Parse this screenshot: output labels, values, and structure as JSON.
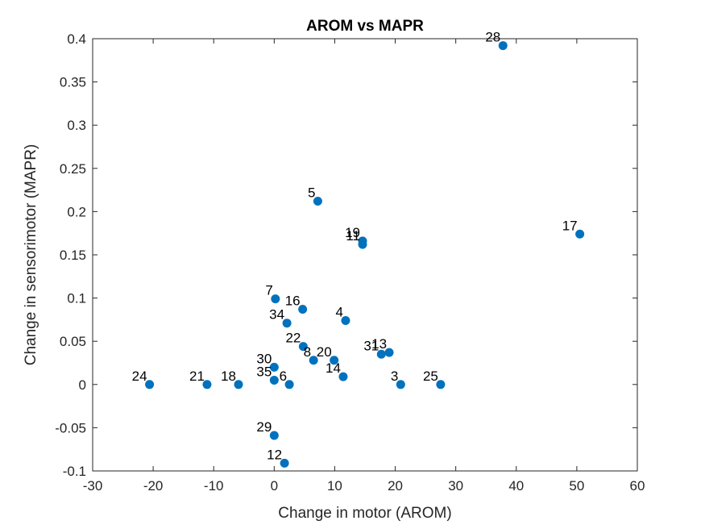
{
  "chart_data": {
    "type": "scatter",
    "title": "AROM vs MAPR",
    "xlabel": "Change in motor (AROM)",
    "ylabel": "Change in sensorimotor (MAPR)",
    "xlim": [
      -30,
      60
    ],
    "ylim": [
      -0.1,
      0.4
    ],
    "xticks": [
      -30,
      -20,
      -10,
      0,
      10,
      20,
      30,
      40,
      50,
      60
    ],
    "xtick_labels": [
      "-30",
      "-20",
      "-10",
      "0",
      "10",
      "20",
      "30",
      "40",
      "50",
      "60"
    ],
    "yticks": [
      -0.1,
      -0.05,
      0,
      0.05,
      0.1,
      0.15,
      0.2,
      0.25,
      0.3,
      0.35,
      0.4
    ],
    "ytick_labels": [
      "-0.1",
      "-0.05",
      "0",
      "0.05",
      "0.1",
      "0.15",
      "0.2",
      "0.25",
      "0.3",
      "0.35",
      "0.4"
    ],
    "grid": false,
    "marker_color": "#0072BD",
    "points": [
      {
        "label": "28",
        "x": 37.8,
        "y": 0.392
      },
      {
        "label": "5",
        "x": 7.2,
        "y": 0.212
      },
      {
        "label": "17",
        "x": 50.5,
        "y": 0.174
      },
      {
        "label": "19",
        "x": 14.6,
        "y": 0.166
      },
      {
        "label": "11",
        "x": 14.6,
        "y": 0.162
      },
      {
        "label": "7",
        "x": 0.2,
        "y": 0.099
      },
      {
        "label": "16",
        "x": 4.7,
        "y": 0.087
      },
      {
        "label": "4",
        "x": 11.8,
        "y": 0.074
      },
      {
        "label": "34",
        "x": 2.1,
        "y": 0.071
      },
      {
        "label": "22",
        "x": 4.8,
        "y": 0.044
      },
      {
        "label": "13",
        "x": 19.0,
        "y": 0.037
      },
      {
        "label": "31",
        "x": 17.7,
        "y": 0.035
      },
      {
        "label": "20",
        "x": 9.9,
        "y": 0.028
      },
      {
        "label": "8",
        "x": 6.5,
        "y": 0.028
      },
      {
        "label": "30",
        "x": 0.0,
        "y": 0.02
      },
      {
        "label": "14",
        "x": 11.4,
        "y": 0.009
      },
      {
        "label": "35",
        "x": 0.0,
        "y": 0.005
      },
      {
        "label": "6",
        "x": 2.5,
        "y": 0.0
      },
      {
        "label": "24",
        "x": -20.6,
        "y": 0.0
      },
      {
        "label": "21",
        "x": -11.1,
        "y": 0.0
      },
      {
        "label": "18",
        "x": -5.9,
        "y": 0.0
      },
      {
        "label": "3",
        "x": 20.9,
        "y": 0.0
      },
      {
        "label": "25",
        "x": 27.5,
        "y": 0.0
      },
      {
        "label": "29",
        "x": 0.0,
        "y": -0.059
      },
      {
        "label": "12",
        "x": 1.7,
        "y": -0.091
      }
    ]
  }
}
